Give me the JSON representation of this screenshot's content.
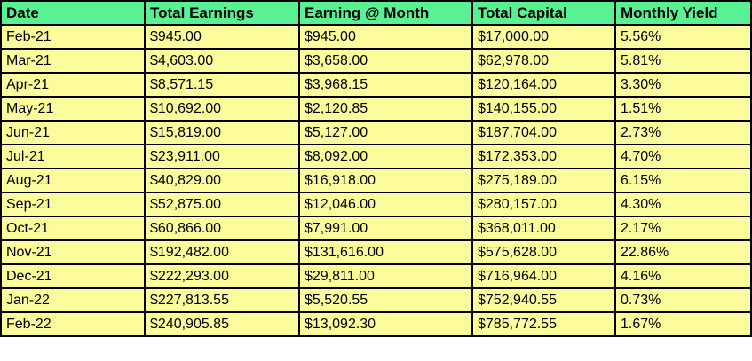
{
  "chart_data": {
    "type": "table",
    "columns": [
      "Date",
      "Total Earnings",
      "Earning @ Month",
      "Total Capital",
      "Monthly Yield"
    ],
    "rows": [
      [
        "Feb-21",
        "$945.00",
        "$945.00",
        "$17,000.00",
        "5.56%"
      ],
      [
        "Mar-21",
        "$4,603.00",
        "$3,658.00",
        "$62,978.00",
        "5.81%"
      ],
      [
        "Apr-21",
        "$8,571.15",
        "$3,968.15",
        "$120,164.00",
        "3.30%"
      ],
      [
        "May-21",
        "$10,692.00",
        "$2,120.85",
        "$140,155.00",
        "1.51%"
      ],
      [
        "Jun-21",
        "$15,819.00",
        "$5,127.00",
        "$187,704.00",
        "2.73%"
      ],
      [
        "Jul-21",
        "$23,911.00",
        "$8,092.00",
        "$172,353.00",
        "4.70%"
      ],
      [
        "Aug-21",
        "$40,829.00",
        "$16,918.00",
        "$275,189.00",
        "6.15%"
      ],
      [
        "Sep-21",
        "$52,875.00",
        "$12,046.00",
        "$280,157.00",
        "4.30%"
      ],
      [
        "Oct-21",
        "$60,866.00",
        "$7,991.00",
        "$368,011.00",
        "2.17%"
      ],
      [
        "Nov-21",
        "$192,482.00",
        "$131,616.00",
        "$575,628.00",
        "22.86%"
      ],
      [
        "Dec-21",
        "$222,293.00",
        "$29,811.00",
        "$716,964.00",
        "4.16%"
      ],
      [
        "Jan-22",
        "$227,813.55",
        "$5,520.55",
        "$752,940.55",
        "0.73%"
      ],
      [
        "Feb-22",
        "$240,905.85",
        "$13,092.30",
        "$785,772.55",
        "1.67%"
      ]
    ]
  },
  "colors": {
    "header_bg": "#58F295",
    "row_bg": "#FCFC9D",
    "grid": "#000000",
    "text": "#000000"
  }
}
